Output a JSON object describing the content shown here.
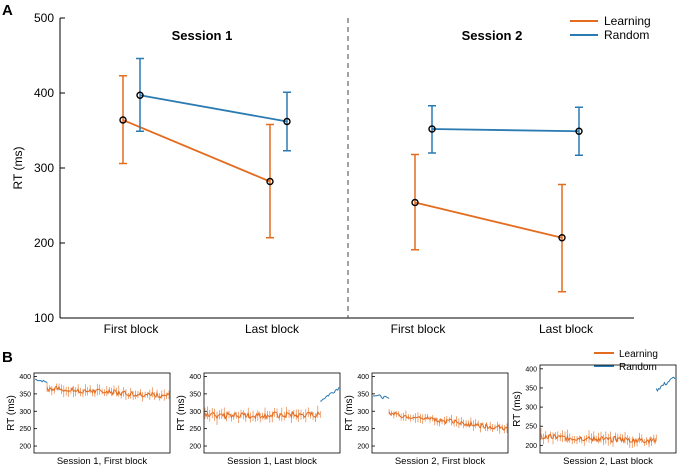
{
  "panel_a": {
    "label": "A"
  },
  "panel_b": {
    "label": "B"
  },
  "colors": {
    "learning": "#E36C1F",
    "random": "#2B7BB2",
    "axis": "#000000"
  },
  "chart_data": [
    {
      "id": "A",
      "type": "line",
      "title": "",
      "ylabel": "RT (ms)",
      "xlabel": "",
      "ylim": [
        100,
        500
      ],
      "yticks": [
        100,
        200,
        300,
        400,
        500
      ],
      "grid": false,
      "legend": {
        "position": "top-right",
        "entries": [
          "Learning",
          "Random"
        ]
      },
      "sessions": [
        {
          "title": "Session 1",
          "categories": [
            "First block",
            "Last block"
          ],
          "series": [
            {
              "name": "Learning",
              "values": [
                364,
                282
              ],
              "err_low": [
                306,
                207
              ],
              "err_high": [
                423,
                358
              ]
            },
            {
              "name": "Random",
              "values": [
                397,
                362
              ],
              "err_low": [
                349,
                323
              ],
              "err_high": [
                446,
                401
              ]
            }
          ]
        },
        {
          "title": "Session 2",
          "categories": [
            "First block",
            "Last block"
          ],
          "series": [
            {
              "name": "Learning",
              "values": [
                254,
                207
              ],
              "err_low": [
                191,
                135
              ],
              "err_high": [
                318,
                278
              ]
            },
            {
              "name": "Random",
              "values": [
                352,
                349
              ],
              "err_low": [
                320,
                317
              ],
              "err_high": [
                383,
                381
              ]
            }
          ]
        }
      ]
    },
    {
      "id": "B",
      "type": "line",
      "ylabel": "RT (ms)",
      "legend": {
        "position": "top-right",
        "entries": [
          "Learning",
          "Random"
        ]
      },
      "subplots": [
        {
          "xlabel": "Session 1, First block",
          "ylim": [
            180,
            410
          ],
          "yticks": [
            200,
            250,
            300,
            350,
            400
          ],
          "segments": [
            {
              "series": "Random",
              "start": 0.0,
              "end": 0.09,
              "level_start": 392,
              "level_end": 384,
              "noise": 5
            },
            {
              "series": "Learning",
              "start": 0.09,
              "end": 1.0,
              "level_start": 365,
              "level_end": 345,
              "noise": 13
            }
          ]
        },
        {
          "xlabel": "Session 1, Last block",
          "ylim": [
            180,
            410
          ],
          "yticks": [
            200,
            250,
            300,
            350,
            400
          ],
          "segments": [
            {
              "series": "Learning",
              "start": 0.0,
              "end": 0.86,
              "level_start": 287,
              "level_end": 290,
              "noise": 15
            },
            {
              "series": "Random",
              "start": 0.86,
              "end": 1.0,
              "level_start": 330,
              "level_end": 368,
              "noise": 8
            }
          ]
        },
        {
          "xlabel": "Session 2, First block",
          "ylim": [
            180,
            410
          ],
          "yticks": [
            200,
            250,
            300,
            350,
            400
          ],
          "segments": [
            {
              "series": "Random",
              "start": 0.0,
              "end": 0.12,
              "level_start": 348,
              "level_end": 336,
              "noise": 7
            },
            {
              "series": "Learning",
              "start": 0.12,
              "end": 1.0,
              "level_start": 293,
              "level_end": 250,
              "noise": 12
            }
          ]
        },
        {
          "xlabel": "Session 2, Last block",
          "ylim": [
            180,
            410
          ],
          "yticks": [
            200,
            250,
            300,
            350,
            400
          ],
          "segments": [
            {
              "series": "Learning",
              "start": 0.0,
              "end": 0.86,
              "level_start": 222,
              "level_end": 212,
              "noise": 13
            },
            {
              "series": "Random",
              "start": 0.86,
              "end": 1.0,
              "level_start": 345,
              "level_end": 378,
              "noise": 9
            }
          ]
        }
      ]
    }
  ]
}
